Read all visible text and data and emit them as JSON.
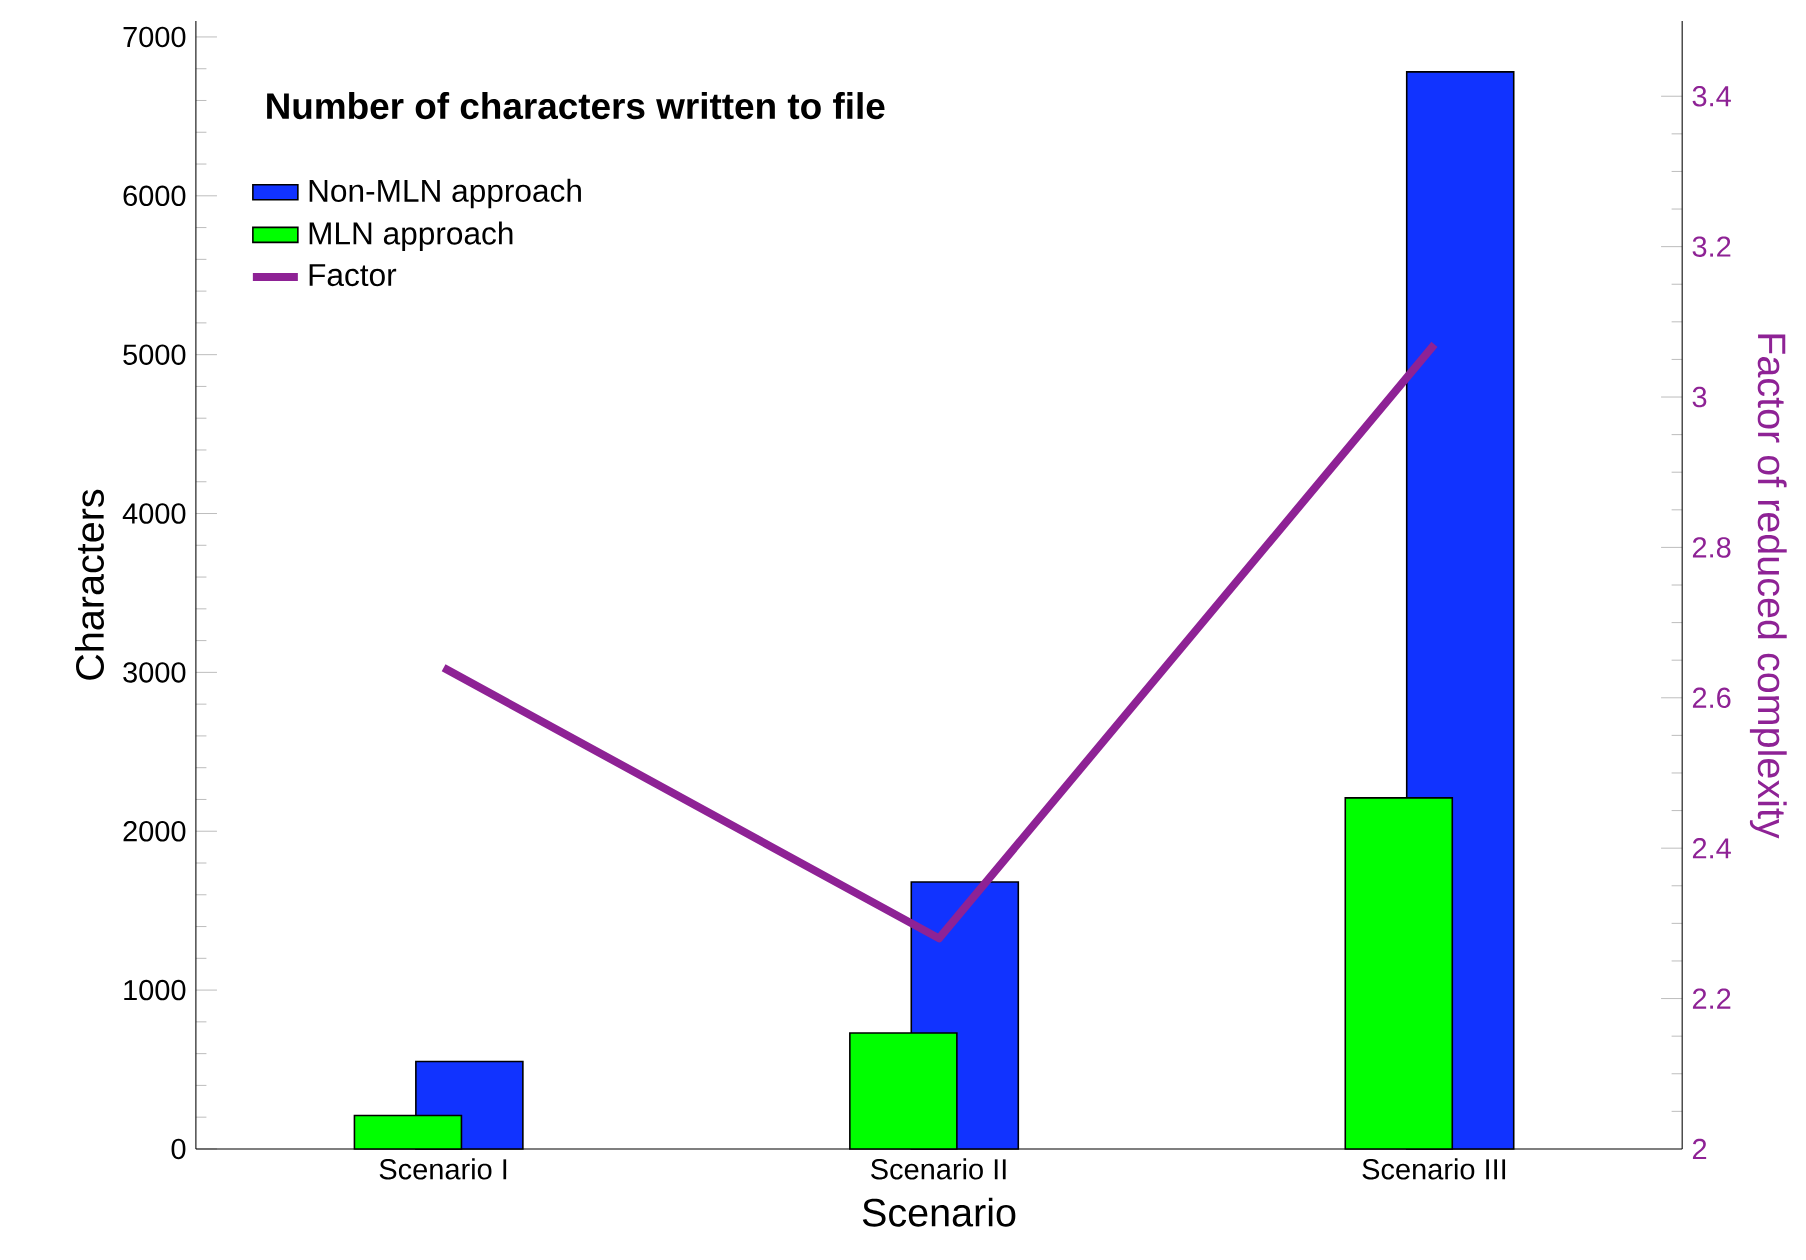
{
  "chart_data": {
    "type": "bar",
    "title": "Number of characters written to file",
    "xlabel": "Scenario",
    "ylabel": "Characters",
    "y2label": "Factor of reduced complexity",
    "categories": [
      "Scenario I",
      "Scenario II",
      "Scenario III"
    ],
    "series": [
      {
        "name": "Non-MLN approach",
        "color": "#1133ff",
        "values": [
          550,
          1680,
          6780
        ]
      },
      {
        "name": "MLN approach",
        "color": "#00ff00",
        "values": [
          210,
          730,
          2210
        ]
      },
      {
        "name": "Factor",
        "type": "line",
        "axis": "y2",
        "color": "#8e2295",
        "values": [
          2.64,
          2.28,
          3.07
        ]
      }
    ],
    "ylim": [
      0,
      7100
    ],
    "yticks": [
      0,
      1000,
      2000,
      3000,
      4000,
      5000,
      6000,
      7000
    ],
    "y2lim": [
      2,
      3.5
    ],
    "y2ticks": [
      2,
      2.2,
      2.4,
      2.6,
      2.8,
      3,
      3.2,
      3.4
    ],
    "legend": "top left"
  }
}
